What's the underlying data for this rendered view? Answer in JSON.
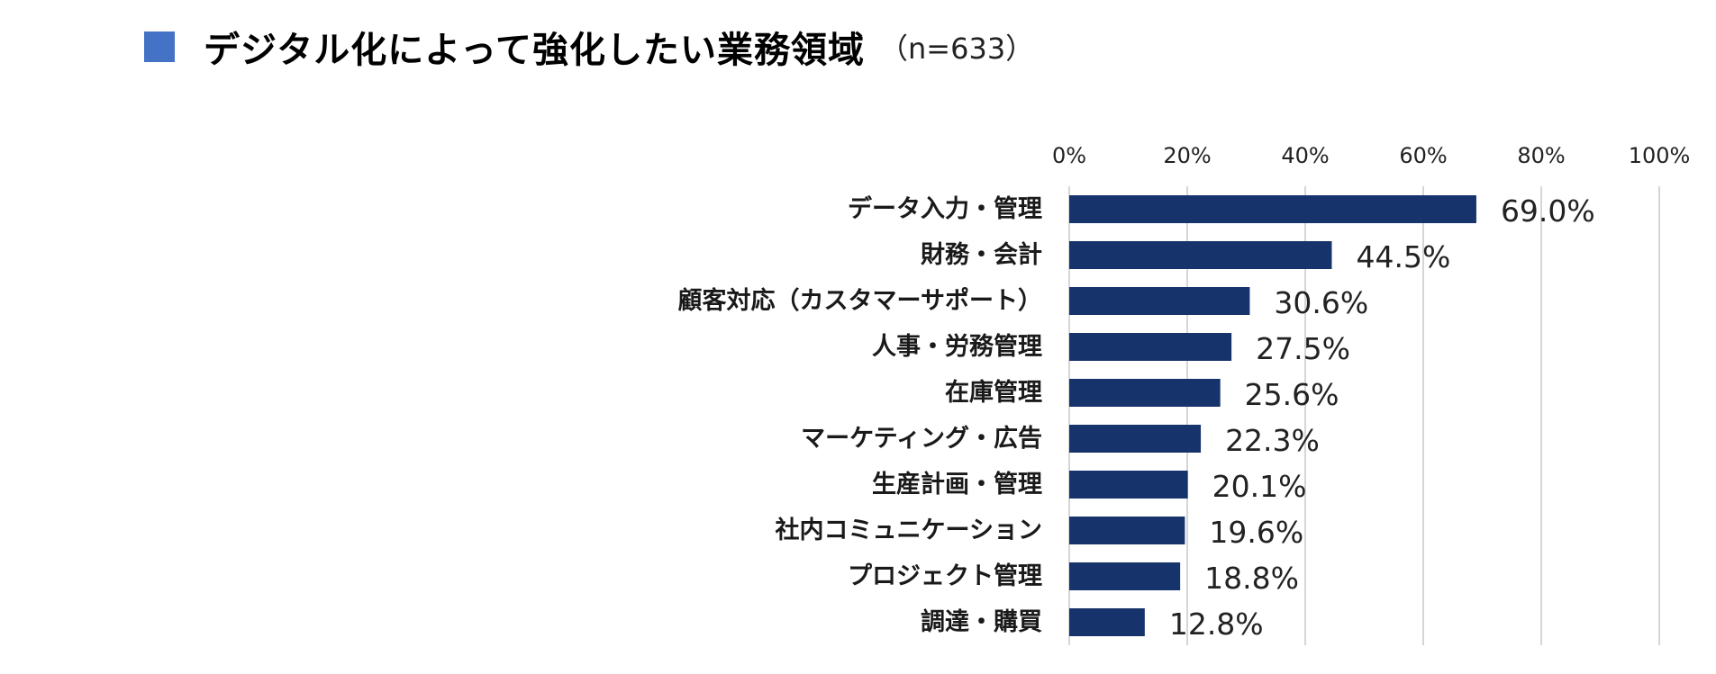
{
  "title": {
    "text": "デジタル化によって強化したい業務領域",
    "sample": "（n=633）",
    "marker_color": "#4472C4"
  },
  "chart_data": {
    "type": "bar",
    "orientation": "horizontal",
    "categories": [
      "データ入力・管理",
      "財務・会計",
      "顧客対応（カスタマーサポート）",
      "人事・労務管理",
      "在庫管理",
      "マーケティング・広告",
      "生産計画・管理",
      "社内コミュニケーション",
      "プロジェクト管理",
      "調達・購買"
    ],
    "values": [
      69.0,
      44.5,
      30.6,
      27.5,
      25.6,
      22.3,
      20.1,
      19.6,
      18.8,
      12.8
    ],
    "value_labels": [
      "69.0%",
      "44.5%",
      "30.6%",
      "27.5%",
      "25.6%",
      "22.3%",
      "20.1%",
      "19.6%",
      "18.8%",
      "12.8%"
    ],
    "xlim": [
      0,
      100
    ],
    "ticks": [
      0,
      20,
      40,
      60,
      80,
      100
    ],
    "tick_labels": [
      "0%",
      "20%",
      "40%",
      "60%",
      "80%",
      "100%"
    ],
    "xaxis_position": "top",
    "grid": true,
    "legend": false,
    "bar_color": "#17336B",
    "grid_color": "#C8C8C8"
  }
}
